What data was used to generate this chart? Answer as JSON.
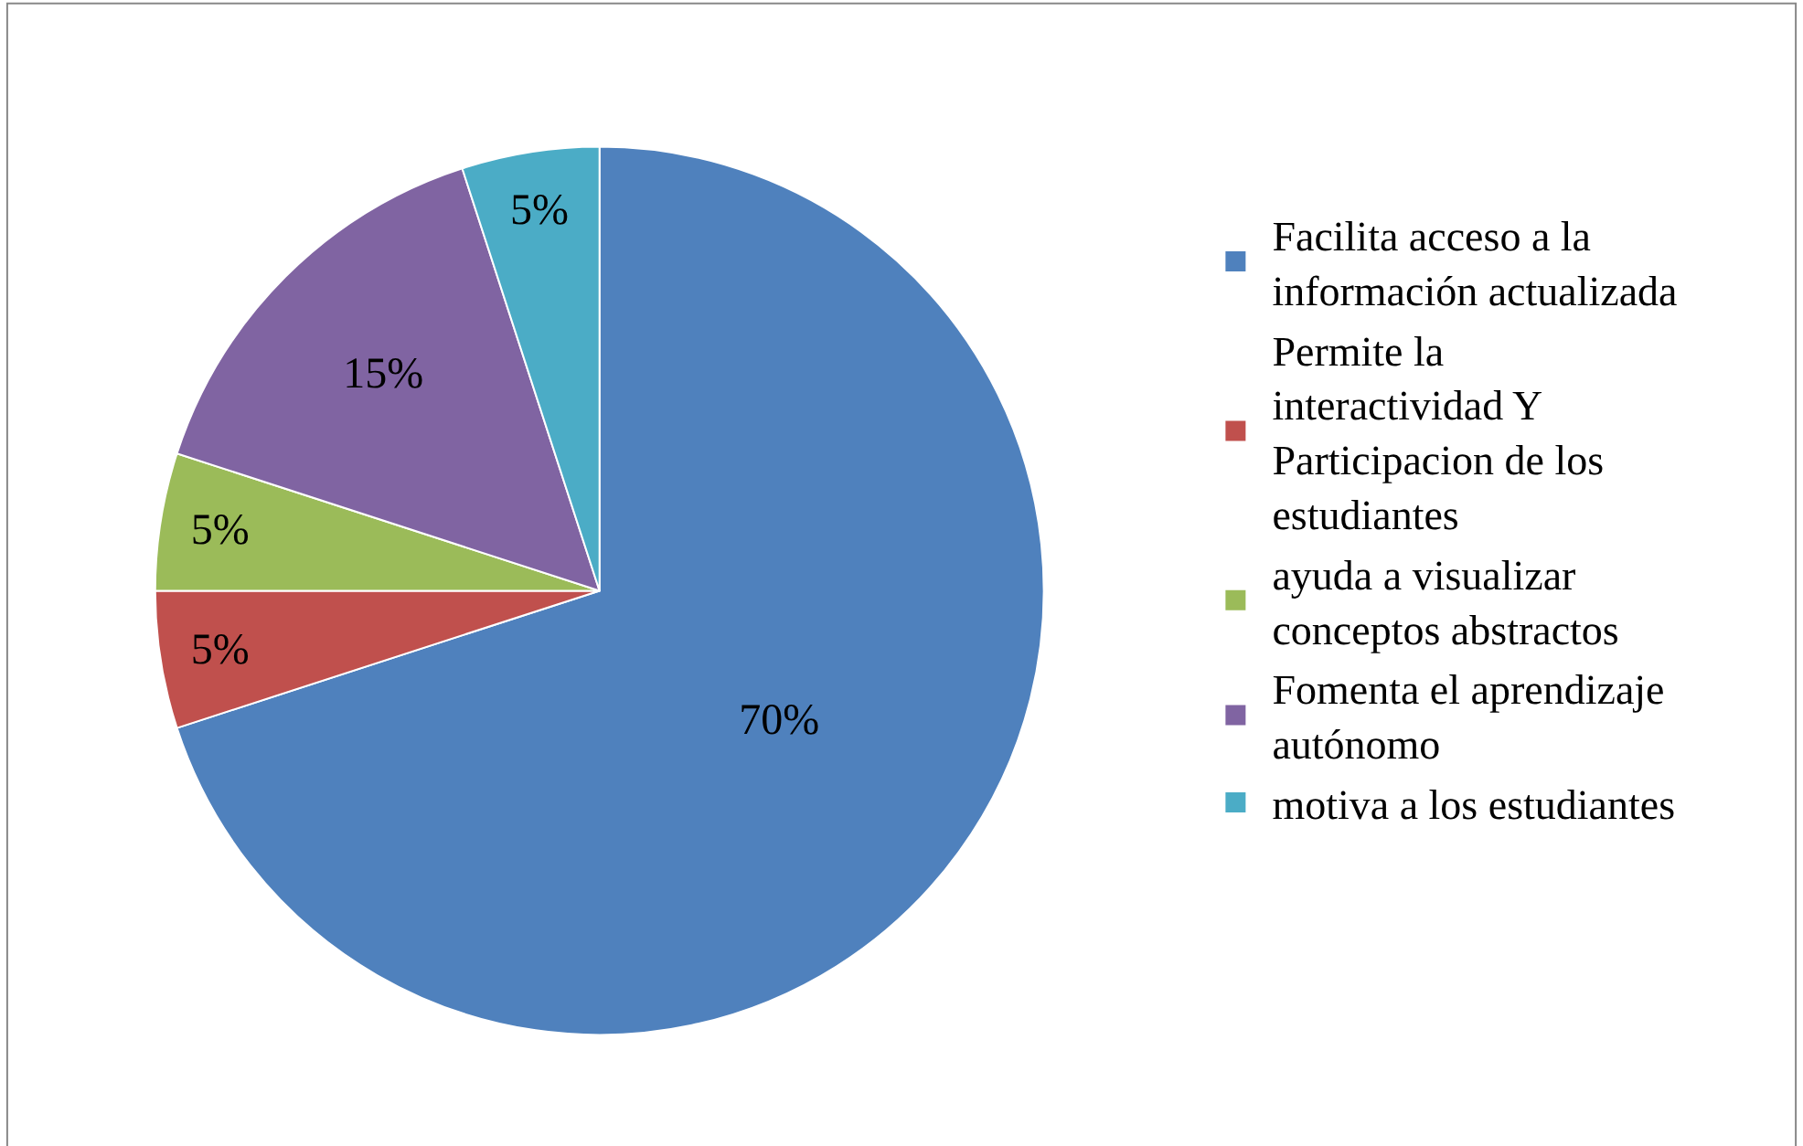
{
  "chart_data": {
    "type": "pie",
    "categories": [
      "Facilita acceso a la información actualizada",
      "Permite la interactividad Y Participacion de los estudiantes",
      "ayuda a visualizar conceptos abstractos",
      "Fomenta el aprendizaje autónomo",
      "motiva a los estudiantes"
    ],
    "values": [
      70,
      5,
      5,
      15,
      5
    ],
    "colors": [
      "#4f81bd",
      "#c0504d",
      "#9bbb59",
      "#8064a2",
      "#4bacc6"
    ],
    "value_labels": [
      "70%",
      "5%",
      "5%",
      "15%",
      "5%"
    ],
    "legend": "right"
  }
}
